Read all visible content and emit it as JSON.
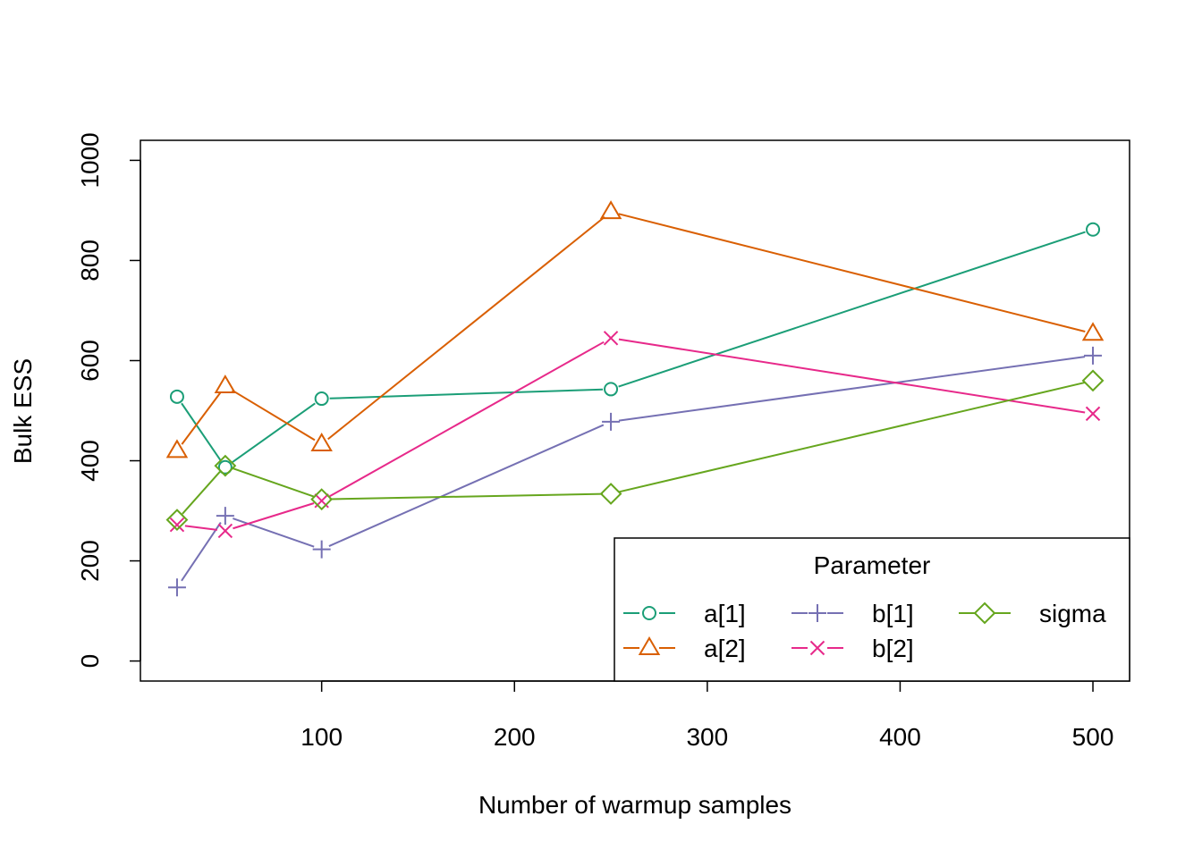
{
  "chart_data": {
    "type": "line",
    "xlabel": "Number of warmup samples",
    "ylabel": "Bulk ESS",
    "xlim": [
      6,
      519
    ],
    "ylim": [
      -40,
      1040
    ],
    "x": [
      25,
      50,
      100,
      250,
      500
    ],
    "x_ticks": [
      100,
      200,
      300,
      400,
      500
    ],
    "y_ticks": [
      0,
      200,
      400,
      600,
      800,
      1000
    ],
    "x_tick_labels": [
      "100",
      "200",
      "300",
      "400",
      "500"
    ],
    "y_tick_labels": [
      "0",
      "200",
      "400",
      "600",
      "800",
      "1000"
    ],
    "grid": false,
    "legend": {
      "title": "Parameter",
      "placement": "bottom-right",
      "columns": 3
    },
    "series": [
      {
        "name": "a[1]",
        "color": "#1b9e77",
        "marker": "circle",
        "values": [
          528,
          387,
          524,
          543,
          862
        ]
      },
      {
        "name": "a[2]",
        "color": "#d95f02",
        "marker": "triangle",
        "values": [
          420,
          549,
          433,
          897,
          654
        ]
      },
      {
        "name": "b[1]",
        "color": "#7570b3",
        "marker": "plus",
        "values": [
          147,
          290,
          223,
          478,
          610
        ]
      },
      {
        "name": "b[2]",
        "color": "#e7298a",
        "marker": "cross",
        "values": [
          272,
          260,
          320,
          645,
          494
        ]
      },
      {
        "name": "sigma",
        "color": "#66a61e",
        "marker": "diamond",
        "values": [
          282,
          390,
          323,
          334,
          560
        ]
      }
    ]
  }
}
